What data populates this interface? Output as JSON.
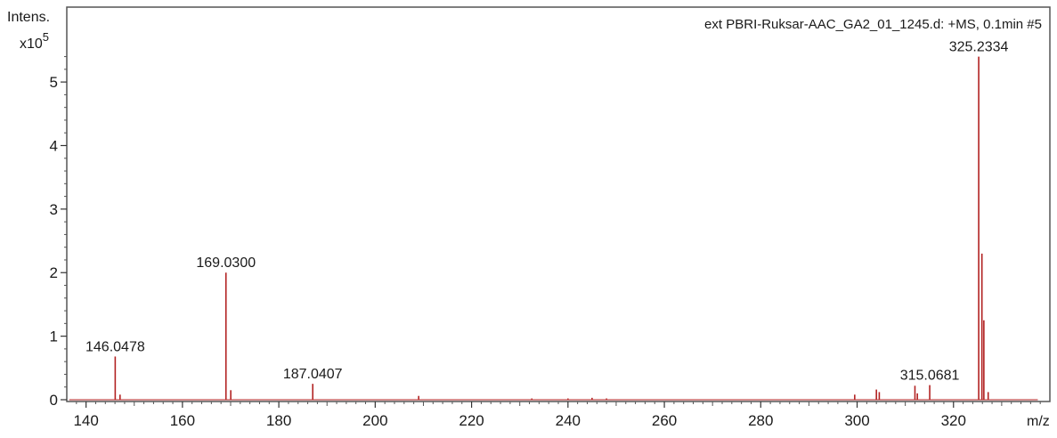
{
  "chart_data": {
    "type": "bar",
    "title": "ext PBRI-Ruksar-AAC_GA2_01_1245.d: +MS, 0.1min #5",
    "ylabel": "Intens.",
    "yscale_base": "x10",
    "yscale_exp": "5",
    "xlabel": "m/z",
    "xlim": [
      136,
      340
    ],
    "ylim": [
      0,
      5.45
    ],
    "x_ticks": [
      140,
      160,
      180,
      200,
      220,
      240,
      260,
      280,
      300,
      320
    ],
    "y_ticks": [
      0,
      1,
      2,
      3,
      4,
      5
    ],
    "grid": false,
    "peak_color": "#b22222",
    "peaks": [
      {
        "mz": 146.0478,
        "intensity": 0.68,
        "label": "146.0478"
      },
      {
        "mz": 147.05,
        "intensity": 0.08,
        "label": ""
      },
      {
        "mz": 169.03,
        "intensity": 2.0,
        "label": "169.0300"
      },
      {
        "mz": 170.03,
        "intensity": 0.15,
        "label": ""
      },
      {
        "mz": 187.0407,
        "intensity": 0.25,
        "label": "187.0407"
      },
      {
        "mz": 209.02,
        "intensity": 0.06,
        "label": ""
      },
      {
        "mz": 232.5,
        "intensity": 0.02,
        "label": ""
      },
      {
        "mz": 240.0,
        "intensity": 0.02,
        "label": ""
      },
      {
        "mz": 245.0,
        "intensity": 0.03,
        "label": ""
      },
      {
        "mz": 248.0,
        "intensity": 0.02,
        "label": ""
      },
      {
        "mz": 299.5,
        "intensity": 0.08,
        "label": ""
      },
      {
        "mz": 304.0,
        "intensity": 0.16,
        "label": ""
      },
      {
        "mz": 304.6,
        "intensity": 0.12,
        "label": ""
      },
      {
        "mz": 312.0,
        "intensity": 0.22,
        "label": ""
      },
      {
        "mz": 312.5,
        "intensity": 0.1,
        "label": ""
      },
      {
        "mz": 315.0681,
        "intensity": 0.23,
        "label": "315.0681"
      },
      {
        "mz": 325.2334,
        "intensity": 5.4,
        "label": "325.2334"
      },
      {
        "mz": 325.9,
        "intensity": 2.3,
        "label": ""
      },
      {
        "mz": 326.3,
        "intensity": 1.25,
        "label": ""
      },
      {
        "mz": 327.2,
        "intensity": 0.12,
        "label": ""
      }
    ]
  }
}
